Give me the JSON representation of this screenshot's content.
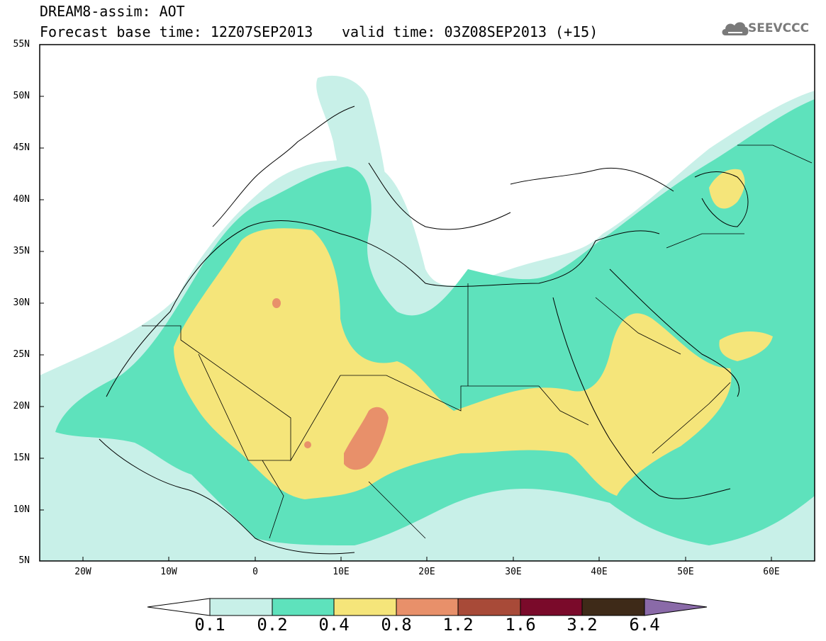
{
  "header": {
    "title": "DREAM8-assim: AOT",
    "base_time": "Forecast base time: 12Z07SEP2013",
    "valid_time": "valid time: 03Z08SEP2013 (+15)"
  },
  "logo": {
    "icon": "cloud-icon",
    "text": "SEEVCCC"
  },
  "map": {
    "lat_labels": [
      "55N",
      "50N",
      "45N",
      "40N",
      "35N",
      "30N",
      "25N",
      "20N",
      "15N",
      "10N",
      "5N"
    ],
    "lon_labels": [
      "20W",
      "10W",
      "0",
      "10E",
      "20E",
      "30E",
      "40E",
      "50E",
      "60E"
    ],
    "lon_range": [
      -25,
      65
    ],
    "lat_range": [
      5,
      55
    ]
  },
  "colorbar": {
    "labels": [
      "0.1",
      "0.2",
      "0.4",
      "0.8",
      "1.2",
      "1.6",
      "3.2",
      "6.4"
    ],
    "colors": [
      "#ffffff",
      "#c8f0e8",
      "#5ee2bc",
      "#f5e57a",
      "#e8906a",
      "#a84a38",
      "#7a0a2a",
      "#3e2a18",
      "#8a6aa8"
    ]
  },
  "colors": {
    "c1": "#c8f0e8",
    "c2": "#5ee2bc",
    "c3": "#f5e57a",
    "c4": "#e8906a"
  }
}
